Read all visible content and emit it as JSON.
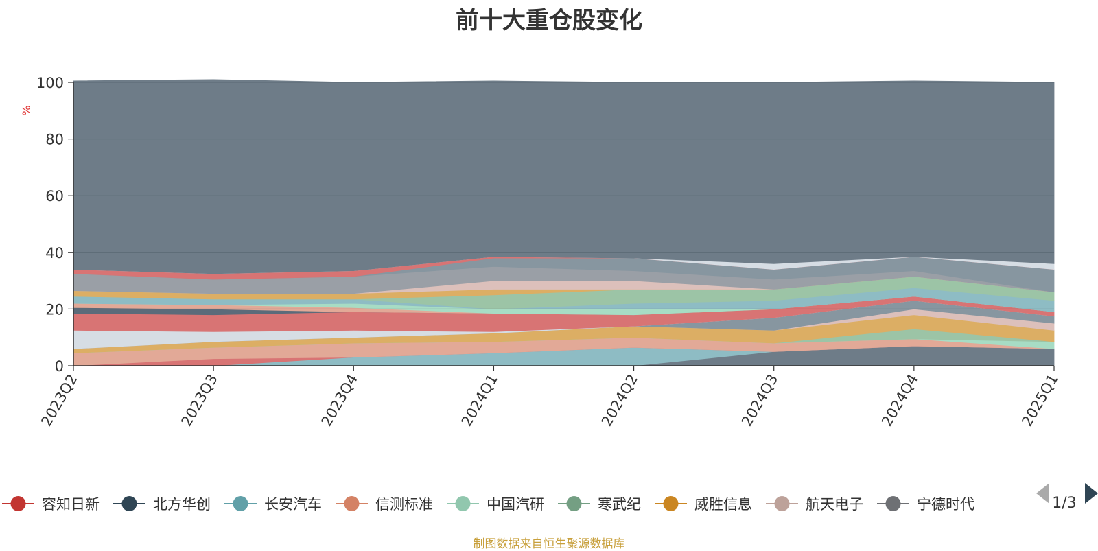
{
  "chart_data": {
    "type": "area",
    "stacked": true,
    "title": "前十大重仓股变化",
    "ylabel": "%",
    "ylim": [
      0,
      100
    ],
    "yticks": [
      0,
      20,
      40,
      60,
      80,
      100
    ],
    "grid": true,
    "categories": [
      "2023Q2",
      "2023Q3",
      "2023Q4",
      "2024Q1",
      "2024Q2",
      "2024Q3",
      "2024Q4",
      "2025Q1"
    ],
    "series": [
      {
        "name": "宁德时代",
        "color": "#6e7c88",
        "values": [
          0,
          0,
          0,
          0,
          0,
          5,
          7,
          6
        ]
      },
      {
        "name": "长安汽车",
        "color": "#8ebcc4",
        "values": [
          0,
          0,
          3,
          4.5,
          6.5,
          0,
          0,
          0
        ]
      },
      {
        "name": "容知日新",
        "color": "#d87474",
        "values": [
          0,
          2.5,
          0,
          0,
          0,
          0,
          0,
          0
        ]
      },
      {
        "name": "信测标准",
        "color": "#e2a997",
        "values": [
          4.5,
          4,
          5,
          4,
          3.5,
          3,
          2.5,
          0
        ]
      },
      {
        "name": "中国汽研",
        "color": "#a7dcc4",
        "values": [
          0,
          0,
          0,
          0,
          0,
          0,
          0,
          2.5
        ]
      },
      {
        "name": "寒武纪",
        "color": "#9cc4a6",
        "values": [
          0,
          0,
          0,
          0,
          0,
          0,
          3.5,
          0
        ]
      },
      {
        "name": "威胜信息",
        "color": "#dcae64",
        "values": [
          1.5,
          2,
          2,
          3,
          4,
          4.5,
          5,
          4
        ]
      },
      {
        "name": "航天电子",
        "color": "#dcc0bb",
        "values": [
          0,
          0,
          0,
          0,
          0,
          0,
          2,
          2.5
        ]
      },
      {
        "name": "",
        "color": "#8796a0",
        "values": [
          0,
          0,
          0,
          0,
          0,
          4.5,
          3,
          2.5
        ]
      },
      {
        "name": "",
        "color": "#d6dde4",
        "values": [
          6.5,
          3.5,
          2.5,
          0.5,
          0,
          0,
          0,
          0
        ]
      },
      {
        "name": "容知日新",
        "color": "#d87474",
        "values": [
          6,
          6,
          6.5,
          6.5,
          4,
          3,
          1.5,
          1.5
        ]
      },
      {
        "name": "北方华创",
        "color": "#5b6b7a",
        "values": [
          2,
          2,
          0,
          0,
          0,
          0,
          0,
          0
        ]
      },
      {
        "name": "信测标准",
        "color": "#e2a997",
        "values": [
          1.5,
          1.5,
          1.5,
          0,
          0,
          0,
          0,
          0
        ]
      },
      {
        "name": "中国汽研",
        "color": "#a7dcc4",
        "values": [
          0,
          0,
          1.5,
          1.5,
          2,
          0,
          0,
          0
        ]
      },
      {
        "name": "长安汽车",
        "color": "#8ebcc4",
        "values": [
          2.5,
          2,
          1.5,
          0,
          2,
          3,
          3,
          4
        ]
      },
      {
        "name": "寒武纪",
        "color": "#9cc4a6",
        "values": [
          0,
          0,
          0,
          5,
          5,
          4,
          4,
          3
        ]
      },
      {
        "name": "威胜信息",
        "color": "#dcae64",
        "values": [
          2,
          2,
          2,
          2,
          0,
          0,
          0,
          0
        ]
      },
      {
        "name": "航天电子",
        "color": "#dcc0bb",
        "values": [
          0,
          0,
          0,
          3,
          3,
          0,
          0,
          0
        ]
      },
      {
        "name": "",
        "color": "#9a9fa6",
        "values": [
          6,
          5,
          6,
          5,
          3.5,
          3.5,
          2,
          0
        ]
      },
      {
        "name": "",
        "color": "#8796a0",
        "values": [
          0,
          0,
          0,
          3,
          4.5,
          3.5,
          5,
          8
        ]
      },
      {
        "name": "容知日新",
        "color": "#d87474",
        "values": [
          1.5,
          2,
          2,
          0.5,
          0,
          0,
          0,
          0
        ]
      },
      {
        "name": "",
        "color": "#d6dde4",
        "values": [
          0,
          0,
          0,
          0,
          0,
          2,
          0,
          2
        ]
      },
      {
        "name": "",
        "color": "#6e7c88",
        "values": [
          66.5,
          68.5,
          66.5,
          62,
          62,
          64,
          62,
          64
        ]
      }
    ]
  },
  "legend": {
    "items": [
      {
        "label": "容知日新",
        "color": "#c23531"
      },
      {
        "label": "北方华创",
        "color": "#2f4554"
      },
      {
        "label": "长安汽车",
        "color": "#61a0a8"
      },
      {
        "label": "信测标准",
        "color": "#d48265"
      },
      {
        "label": "中国汽研",
        "color": "#91c7ae"
      },
      {
        "label": "寒武纪",
        "color": "#749f83"
      },
      {
        "label": "威胜信息",
        "color": "#ca8622"
      },
      {
        "label": "航天电子",
        "color": "#bda29a"
      },
      {
        "label": "宁德时代",
        "color": "#6e7074"
      }
    ],
    "page_label": "1/3"
  },
  "source_note": "制图数据来自恒生聚源数据库"
}
